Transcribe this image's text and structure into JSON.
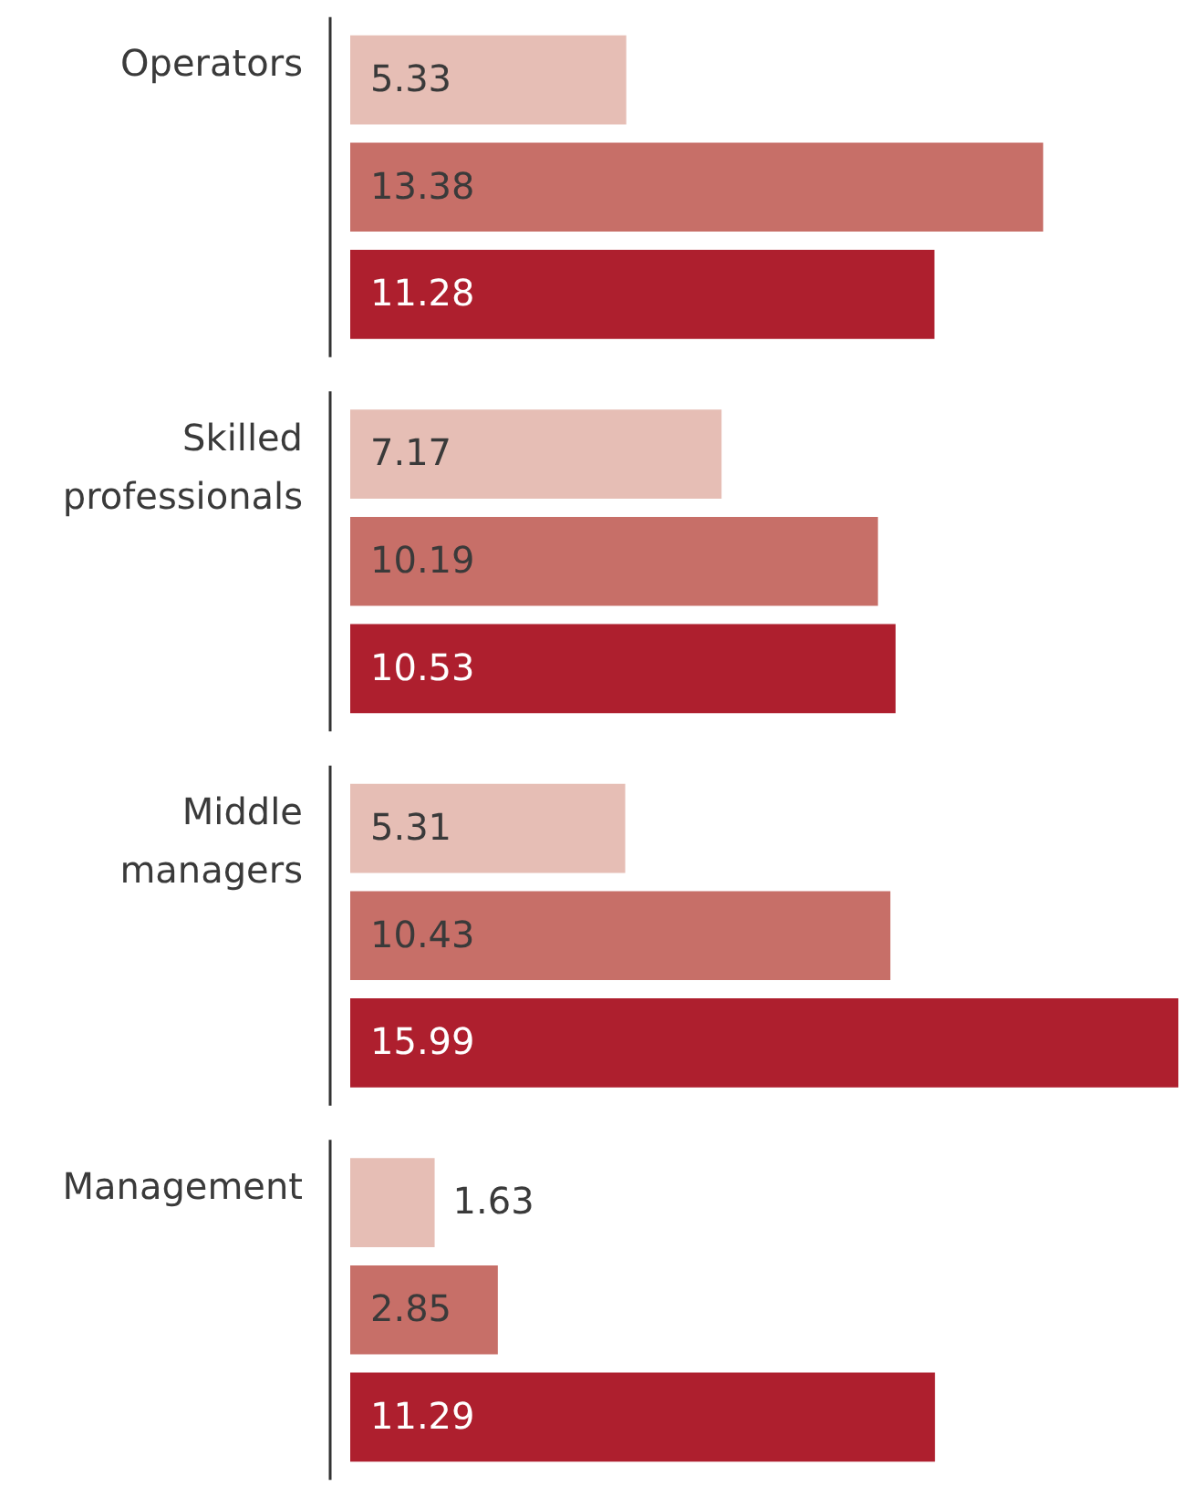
{
  "chart_data": {
    "type": "bar",
    "orientation": "horizontal",
    "categories": [
      "Operators",
      "Skilled professionals",
      "Middle managers",
      "Management"
    ],
    "series": [
      {
        "color": "#e6beb5",
        "values": [
          5.33,
          7.17,
          5.31,
          1.63
        ]
      },
      {
        "color": "#c76f68",
        "values": [
          13.38,
          10.19,
          10.43,
          2.85
        ]
      },
      {
        "color": "#ae1f2e",
        "values": [
          11.28,
          10.53,
          15.99,
          11.29
        ]
      }
    ],
    "data_labels": true,
    "tick_labels": "y"
  }
}
